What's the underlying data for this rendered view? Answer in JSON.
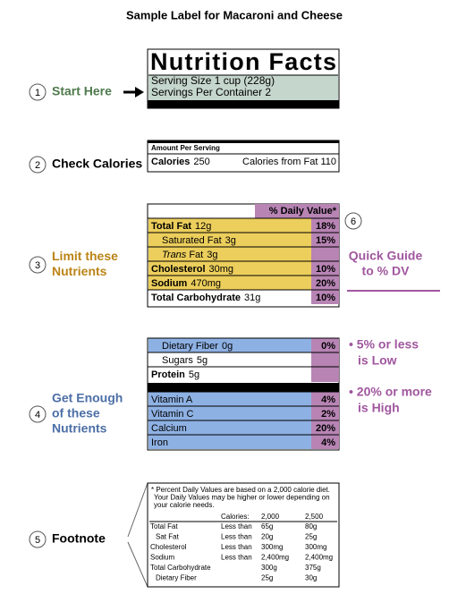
{
  "title": "Sample Label for Macaroni and Cheese",
  "steps": [
    {
      "number": "1",
      "lines": [
        "Start Here"
      ]
    },
    {
      "number": "2",
      "lines": [
        "Check Calories"
      ]
    },
    {
      "number": "3",
      "lines": [
        "Limit these",
        "Nutrients"
      ]
    },
    {
      "number": "4",
      "lines": [
        "Get Enough",
        "of these",
        "Nutrients"
      ]
    },
    {
      "number": "5",
      "lines": [
        "Footnote"
      ]
    },
    {
      "number": "6"
    }
  ],
  "guide": {
    "lines": [
      "Quick Guide",
      "to % DV"
    ],
    "low": [
      "• 5% or less",
      "is Low"
    ],
    "high": [
      "• 20% or more",
      "is High"
    ]
  },
  "label": {
    "heading": "Nutrition Facts",
    "serving_size": "Serving Size 1 cup (228g)",
    "servings": "Servings Per Container  2",
    "amount_per_serving": "Amount Per Serving",
    "calories": {
      "name": "Calories",
      "amount": "250"
    },
    "calories_from_fat": "Calories from Fat 110",
    "dv_header": "% Daily Value*",
    "limit_rows": [
      {
        "name": "Total Fat",
        "amount": "12g",
        "dv": "18%"
      },
      {
        "name": "Saturated Fat",
        "amount": "3g",
        "dv": "15%"
      },
      {
        "italic": "Trans",
        "name": "Fat",
        "amount": "3g"
      },
      {
        "name": "Cholesterol",
        "amount": "30mg",
        "dv": "10%"
      },
      {
        "name": "Sodium",
        "amount": "470mg",
        "dv": "20%"
      },
      {
        "name": "Total Carbohydrate",
        "amount": "31g",
        "dv": "10%"
      }
    ],
    "enough_rows": [
      {
        "name": "Dietary Fiber",
        "amount": "0g",
        "dv": "0%"
      },
      {
        "name": "Sugars",
        "amount": "5g"
      },
      {
        "name": "Protein",
        "amount": "5g"
      },
      {
        "name": "Vitamin A",
        "dv": "4%"
      },
      {
        "name": "Vitamin C",
        "dv": "2%"
      },
      {
        "name": "Calcium",
        "dv": "20%"
      },
      {
        "name": "Iron",
        "dv": "4%"
      }
    ],
    "footnote": {
      "lines": [
        "* Percent Daily Values are based on a 2,000 calorie diet.",
        "Your Daily Values may be higher or lower depending on",
        "your calorie needs."
      ],
      "header": [
        "Calories:",
        "2,000",
        "2,500"
      ],
      "rows": [
        {
          "name": "Total Fat",
          "limit": "Less than",
          "values": [
            "65g",
            "80g"
          ]
        },
        {
          "name": "Sat Fat",
          "limit": "Less than",
          "values": [
            "20g",
            "25g"
          ]
        },
        {
          "name": "Cholesterol",
          "limit": "Less than",
          "values": [
            "300mg",
            "300mg"
          ]
        },
        {
          "name": "Sodium",
          "limit": "Less than",
          "values": [
            "2,400mg",
            "2,400mg"
          ]
        },
        {
          "name": "Total Carbohydrate",
          "values": [
            "300g",
            "375g"
          ]
        },
        {
          "name": "Dietary Fiber",
          "values": [
            "25g",
            "30g"
          ]
        }
      ]
    }
  }
}
